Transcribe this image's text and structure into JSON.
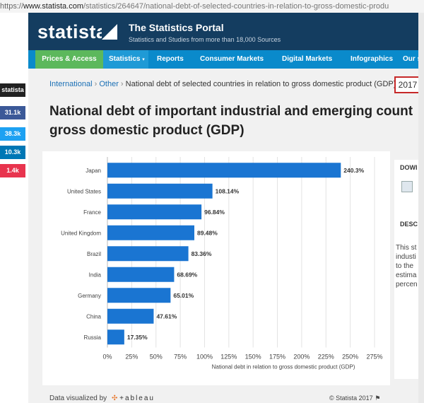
{
  "browser": {
    "url_protocol": "https://",
    "url_host": "www.statista.com",
    "url_path": "/statistics/264647/national-debt-of-selected-countries-in-relation-to-gross-domestic-produ"
  },
  "header": {
    "logo": "statista",
    "portal_title": "The Statistics Portal",
    "portal_subtitle": "Statistics and Studies from more than 18,000 Sources"
  },
  "nav": {
    "items": [
      "Prices & Access",
      "Statistics",
      "Reports",
      "Consumer Markets",
      "Digital Markets",
      "Infographics",
      "Our s"
    ]
  },
  "social": {
    "items": [
      {
        "label": "statista",
        "color": "#222222"
      },
      {
        "label": "31.1k",
        "color": "#3b5998"
      },
      {
        "label": "38.3k",
        "color": "#1da1f2"
      },
      {
        "label": "10.3k",
        "color": "#0077b5"
      },
      {
        "label": "1.4k",
        "color": "#e8344e"
      }
    ]
  },
  "breadcrumb": {
    "items": [
      "International",
      "Other"
    ],
    "separator": "›",
    "current": "National debt of selected countries in relation to gross domestic product (GDP)",
    "year": "2017"
  },
  "page": {
    "title_line1": "National debt of important industrial and emerging count",
    "title_line2": "gross domestic product (GDP)"
  },
  "sidebar": {
    "download_heading": "DOWI",
    "description_heading": "DESC",
    "description_lines": [
      "This st",
      "industi",
      "to the",
      "estima",
      "percen"
    ]
  },
  "chart_data": {
    "type": "bar",
    "orientation": "horizontal",
    "categories": [
      "Japan",
      "United States",
      "France",
      "United Kingdom",
      "Brazil",
      "India",
      "Germany",
      "China",
      "Russia"
    ],
    "values": [
      240.3,
      108.14,
      96.84,
      89.48,
      83.36,
      68.69,
      65.01,
      47.61,
      17.35
    ],
    "value_labels": [
      "240.3%",
      "108.14%",
      "96.84%",
      "89.48%",
      "83.36%",
      "68.69%",
      "65.01%",
      "47.61%",
      "17.35%"
    ],
    "xlabel": "National debt in relation to gross domestic product (GDP)",
    "xlim": [
      0,
      275
    ],
    "x_ticks": [
      0,
      25,
      50,
      75,
      100,
      125,
      150,
      175,
      200,
      225,
      250,
      275
    ],
    "x_tick_labels": [
      "0%",
      "25%",
      "50%",
      "75%",
      "100%",
      "125%",
      "150%",
      "175%",
      "200%",
      "225%",
      "250%",
      "275%"
    ],
    "bar_color": "#1a75d2",
    "grid": true
  },
  "footer": {
    "visualized_by": "Data visualized by",
    "brand": "+ableau",
    "copyright": "© Statista 2017"
  }
}
